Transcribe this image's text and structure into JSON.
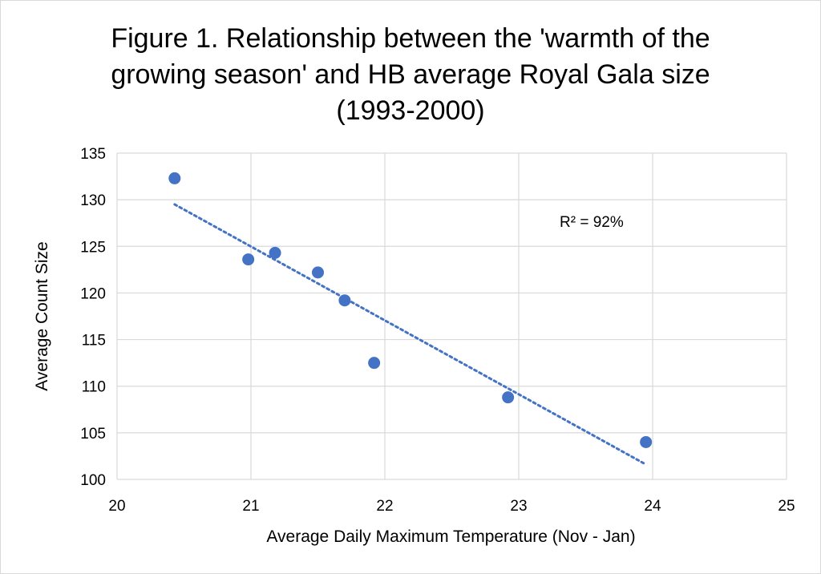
{
  "chart_data": {
    "type": "scatter",
    "title_lines": [
      "Figure 1. Relationship between the 'warmth of the",
      "growing season' and HB average Royal Gala size",
      "(1993-2000)"
    ],
    "xlabel": "Average Daily Maximum Temperature (Nov - Jan)",
    "ylabel": "Average Count Size",
    "xlim": [
      20,
      25
    ],
    "ylim": [
      100,
      135
    ],
    "x_ticks": [
      20,
      21,
      22,
      23,
      24,
      25
    ],
    "y_ticks": [
      100,
      105,
      110,
      115,
      120,
      125,
      130,
      135
    ],
    "grid": true,
    "series": [
      {
        "name": "Royal Gala",
        "color": "#4472C4",
        "points": [
          {
            "x": 20.43,
            "y": 132.3
          },
          {
            "x": 20.98,
            "y": 123.6
          },
          {
            "x": 21.18,
            "y": 124.3
          },
          {
            "x": 21.5,
            "y": 122.2
          },
          {
            "x": 21.7,
            "y": 119.2
          },
          {
            "x": 21.92,
            "y": 112.5
          },
          {
            "x": 22.92,
            "y": 108.8
          },
          {
            "x": 23.95,
            "y": 104.0
          }
        ]
      }
    ],
    "trendline": {
      "type": "linear",
      "style": "dotted",
      "color": "#4472C4",
      "x_start": 20.43,
      "y_start": 129.5,
      "x_end": 23.95,
      "y_end": 101.6
    },
    "annotation": "R² = 92%"
  }
}
